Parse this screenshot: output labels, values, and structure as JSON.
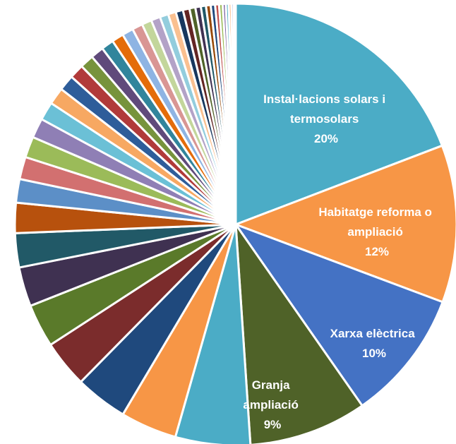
{
  "chart_data": {
    "type": "pie",
    "start_angle_deg": 0,
    "direction": "clockwise",
    "slices": [
      {
        "label_lines": [
          "Instal·lacions solars i",
          "termosolars",
          "20%"
        ],
        "value": 20.0,
        "color": "#4BACC6"
      },
      {
        "label_lines": [
          "Habitatge reforma o",
          "ampliació",
          "12%"
        ],
        "value": 12.0,
        "color": "#F79646"
      },
      {
        "label_lines": [
          "Xarxa elèctrica",
          "10%"
        ],
        "value": 10.0,
        "color": "#4472C4"
      },
      {
        "label_lines": [
          "Granja",
          "ampliació",
          "9%"
        ],
        "value": 9.0,
        "color": "#4F6228"
      },
      {
        "value": 5.7,
        "color": "#4BACC6"
      },
      {
        "value": 4.3,
        "color": "#F79646"
      },
      {
        "value": 4.0,
        "color": "#1F497D"
      },
      {
        "value": 3.6,
        "color": "#7B2C2C"
      },
      {
        "value": 3.3,
        "color": "#5A7A2A"
      },
      {
        "value": 3.0,
        "color": "#3F3151"
      },
      {
        "value": 2.6,
        "color": "#215967"
      },
      {
        "value": 2.3,
        "color": "#B7510D"
      },
      {
        "value": 1.8,
        "color": "#5C8FC7"
      },
      {
        "value": 1.7,
        "color": "#D27070"
      },
      {
        "value": 1.6,
        "color": "#9BBB59"
      },
      {
        "value": 1.5,
        "color": "#8F7FB5"
      },
      {
        "value": 1.4,
        "color": "#6BC0D6"
      },
      {
        "value": 1.3,
        "color": "#F7A862"
      },
      {
        "value": 1.2,
        "color": "#2E5D9A"
      },
      {
        "value": 1.1,
        "color": "#B13A3A"
      },
      {
        "value": 1.05,
        "color": "#77933C"
      },
      {
        "value": 1.0,
        "color": "#604A7B"
      },
      {
        "value": 0.95,
        "color": "#31859C"
      },
      {
        "value": 0.9,
        "color": "#E46C0A"
      },
      {
        "value": 0.85,
        "color": "#8EB4E3"
      },
      {
        "value": 0.8,
        "color": "#D99694"
      },
      {
        "value": 0.75,
        "color": "#C3D69B"
      },
      {
        "value": 0.7,
        "color": "#B3A2C7"
      },
      {
        "value": 0.65,
        "color": "#93CDDD"
      },
      {
        "value": 0.6,
        "color": "#FAC090"
      },
      {
        "value": 0.55,
        "color": "#17375E"
      },
      {
        "value": 0.5,
        "color": "#632523"
      },
      {
        "value": 0.45,
        "color": "#4F6228"
      },
      {
        "value": 0.42,
        "color": "#403152"
      },
      {
        "value": 0.39,
        "color": "#205867"
      },
      {
        "value": 0.36,
        "color": "#974806"
      },
      {
        "value": 0.33,
        "color": "#1F497D"
      },
      {
        "value": 0.3,
        "color": "#C0504D"
      },
      {
        "value": 0.27,
        "color": "#9BBB59"
      },
      {
        "value": 0.24,
        "color": "#8064A2"
      },
      {
        "value": 0.22,
        "color": "#4BACC6"
      },
      {
        "value": 0.2,
        "color": "#F79646"
      },
      {
        "value": 0.18,
        "color": "#4472C4"
      },
      {
        "value": 0.15,
        "color": "#7F7F7F"
      }
    ]
  }
}
